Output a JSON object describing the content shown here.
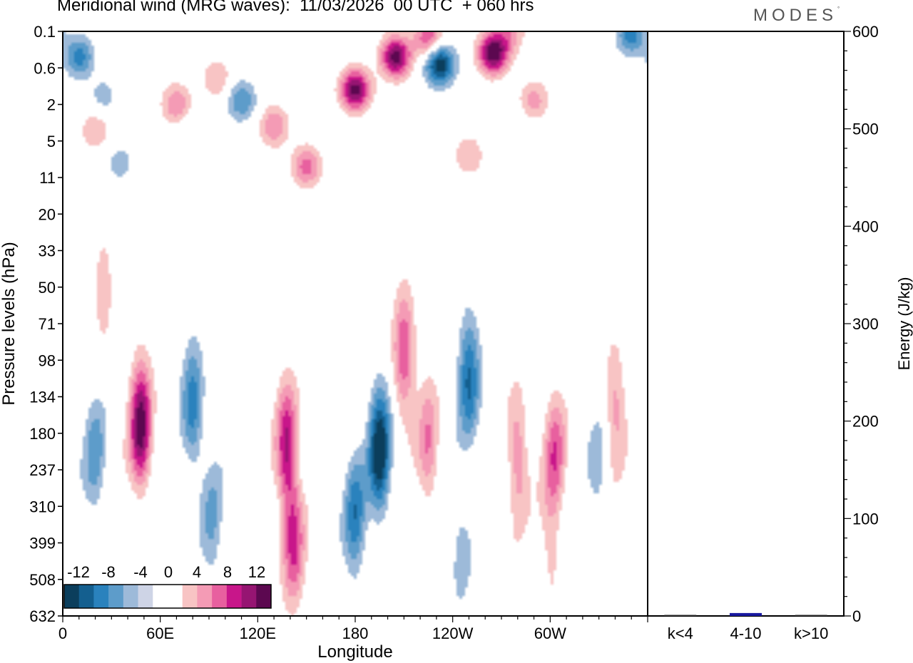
{
  "title": "Meridional wind (MRG waves):  11/03/2026  00 UTC  + 060 hrs",
  "brand": "MODES",
  "brand_mark": "°",
  "colors": {
    "neg": [
      "#0b3e5c",
      "#145f8f",
      "#2a82bd",
      "#5d9cca",
      "#9dbad9",
      "#ced4e6"
    ],
    "zero": "#ffffff",
    "pos": [
      "#f8c4c4",
      "#f49bb5",
      "#e8609f",
      "#c8168a",
      "#961572",
      "#5c0850"
    ],
    "bar": "#1a1aa0"
  },
  "chart_data": [
    {
      "type": "heatmap",
      "title": "Meridional wind (MRG waves)",
      "xlabel": "Longitude",
      "ylabel": "Pressure levels (hPa)",
      "x_ticks": [
        "0",
        "60E",
        "120E",
        "180",
        "120W",
        "60W"
      ],
      "x_tick_lon": [
        0,
        60,
        120,
        180,
        240,
        300
      ],
      "xlim": [
        0,
        360
      ],
      "y_levels": [
        "0.1",
        "0.6",
        "2",
        "5",
        "11",
        "20",
        "33",
        "50",
        "71",
        "98",
        "134",
        "180",
        "237",
        "310",
        "399",
        "508",
        "632"
      ],
      "colorbar": {
        "labels": [
          "-12",
          "-8",
          "-4",
          "0",
          "4",
          "8",
          "12"
        ],
        "levels": [
          -12,
          -10,
          -8,
          -6,
          -4,
          -2,
          0,
          2,
          4,
          6,
          8,
          10,
          12
        ]
      },
      "features": [
        {
          "lon": 10,
          "lev": 0.7,
          "value": -7
        },
        {
          "lon": 25,
          "lev": 1.8,
          "value": -3
        },
        {
          "lon": 20,
          "lev": 2.7,
          "value": 4
        },
        {
          "lon": 70,
          "lev": 2.0,
          "value": 6
        },
        {
          "lon": 95,
          "lev": 1.3,
          "value": 4
        },
        {
          "lon": 110,
          "lev": 1.9,
          "value": -6
        },
        {
          "lon": 130,
          "lev": 2.6,
          "value": 6
        },
        {
          "lon": 150,
          "lev": 3.7,
          "value": 7
        },
        {
          "lon": 180,
          "lev": 1.6,
          "value": 13
        },
        {
          "lon": 205,
          "lev": 0.7,
          "value": 13
        },
        {
          "lon": 225,
          "lev": 0.2,
          "value": 8
        },
        {
          "lon": 232,
          "lev": 0.9,
          "value": -12
        },
        {
          "lon": 265,
          "lev": 0.6,
          "value": 14
        },
        {
          "lon": 275,
          "lev": 0.0,
          "value": 5
        },
        {
          "lon": 290,
          "lev": 1.9,
          "value": 5
        },
        {
          "lon": 350,
          "lev": 0.1,
          "value": -7
        },
        {
          "lon": 35,
          "lev": 3.6,
          "value": -3
        },
        {
          "lon": 80,
          "lev": 2.7,
          "value": -2
        },
        {
          "lon": 250,
          "lev": 3.4,
          "value": 4
        },
        {
          "lon": 280,
          "lev": 2.7,
          "value": -2
        },
        {
          "lon": 20,
          "lev": 11.7,
          "value": -5
        },
        {
          "lon": 48,
          "lev": 10.8,
          "value": 13
        },
        {
          "lon": 80,
          "lev": 10.3,
          "value": -7
        },
        {
          "lon": 92,
          "lev": 13.5,
          "value": -4
        },
        {
          "lon": 138,
          "lev": 11.4,
          "value": 10
        },
        {
          "lon": 142,
          "lev": 14.0,
          "value": 8
        },
        {
          "lon": 180,
          "lev": 13.3,
          "value": -7
        },
        {
          "lon": 195,
          "lev": 11.5,
          "value": -12
        },
        {
          "lon": 210,
          "lev": 8.8,
          "value": 8
        },
        {
          "lon": 225,
          "lev": 11.4,
          "value": 6
        },
        {
          "lon": 250,
          "lev": 9.5,
          "value": -8
        },
        {
          "lon": 280,
          "lev": 11.6,
          "value": 6
        },
        {
          "lon": 303,
          "lev": 11.6,
          "value": 7
        },
        {
          "lon": 340,
          "lev": 10.2,
          "value": 5
        },
        {
          "lon": 330,
          "lev": 12.2,
          "value": -3
        },
        {
          "lon": 300,
          "lev": 14.1,
          "value": 3
        },
        {
          "lon": 245,
          "lev": 14.0,
          "value": -3
        },
        {
          "lon": 25,
          "lev": 7.0,
          "value": 3
        }
      ]
    },
    {
      "type": "bar",
      "ylabel": "Energy (J/kg)",
      "categories": [
        "k<4",
        "4-10",
        "k>10"
      ],
      "values": [
        0,
        3,
        0
      ],
      "ylim": [
        0,
        600
      ],
      "y_ticks": [
        "0",
        "100",
        "200",
        "300",
        "400",
        "500",
        "600"
      ]
    }
  ]
}
